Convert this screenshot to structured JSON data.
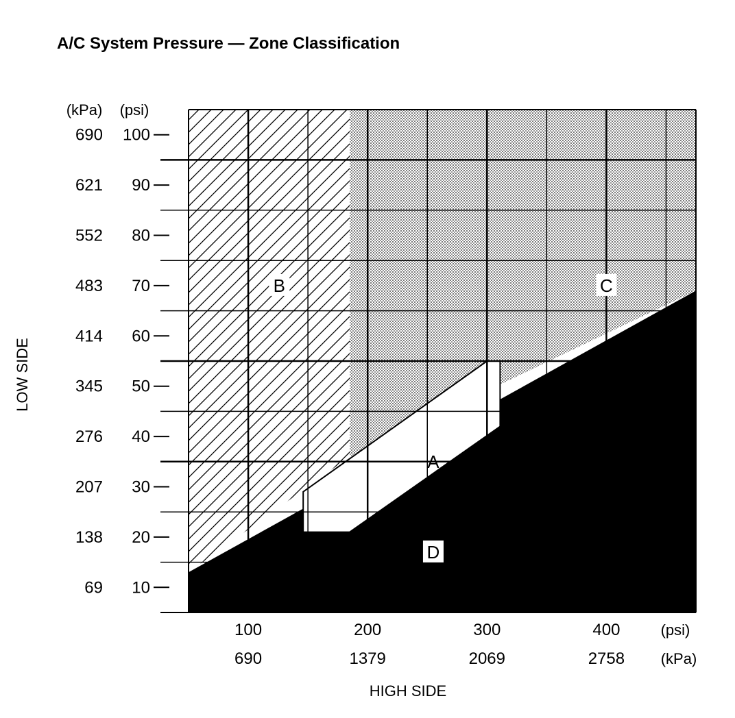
{
  "chart_data": {
    "type": "area",
    "title": "A/C System Pressure — Zone Classification",
    "xlabel": "HIGH SIDE",
    "ylabel": "LOW SIDE",
    "x_axis": {
      "unit_psi": "(psi)",
      "unit_kpa": "(kPa)",
      "range_psi": [
        50,
        475
      ],
      "ticks": [
        {
          "psi": 100,
          "psi_label": "100",
          "kpa_label": "690"
        },
        {
          "psi": 200,
          "psi_label": "200",
          "kpa_label": "1379"
        },
        {
          "psi": 300,
          "psi_label": "300",
          "kpa_label": "2069"
        },
        {
          "psi": 400,
          "psi_label": "400",
          "kpa_label": "2758"
        }
      ]
    },
    "y_axis": {
      "unit_kpa": "(kPa)",
      "unit_psi": "(psi)",
      "range_psi": [
        5,
        105
      ],
      "ticks": [
        {
          "psi": 10,
          "psi_label": "10",
          "kpa_label": "69"
        },
        {
          "psi": 20,
          "psi_label": "20",
          "kpa_label": "138"
        },
        {
          "psi": 30,
          "psi_label": "30",
          "kpa_label": "207"
        },
        {
          "psi": 40,
          "psi_label": "40",
          "kpa_label": "276"
        },
        {
          "psi": 50,
          "psi_label": "50",
          "kpa_label": "345"
        },
        {
          "psi": 60,
          "psi_label": "60",
          "kpa_label": "414"
        },
        {
          "psi": 70,
          "psi_label": "70",
          "kpa_label": "483"
        },
        {
          "psi": 80,
          "psi_label": "80",
          "kpa_label": "552"
        },
        {
          "psi": 90,
          "psi_label": "90",
          "kpa_label": "621"
        },
        {
          "psi": 100,
          "psi_label": "100",
          "kpa_label": "690"
        }
      ]
    },
    "grid": true,
    "zones": [
      {
        "label": "A",
        "fill": "white",
        "label_at": [
          255,
          35
        ],
        "polygon": [
          [
            146,
            29
          ],
          [
            300,
            55
          ],
          [
            311,
            55
          ],
          [
            311,
            42
          ],
          [
            185,
            21
          ],
          [
            146,
            21
          ]
        ]
      },
      {
        "label": "B",
        "fill": "hatched",
        "label_at": [
          126,
          70
        ],
        "polygon": [
          [
            50,
            105
          ],
          [
            185,
            105
          ],
          [
            185,
            36
          ],
          [
            50,
            13
          ]
        ]
      },
      {
        "label": "C",
        "fill": "dotted",
        "label_at": [
          400,
          70
        ],
        "polygon": [
          [
            185,
            105
          ],
          [
            475,
            105
          ],
          [
            475,
            69
          ],
          [
            185,
            36
          ]
        ]
      },
      {
        "label": "D",
        "fill": "black",
        "label_at": [
          255,
          17
        ],
        "polygon": [
          [
            50,
            13
          ],
          [
            475,
            69
          ],
          [
            475,
            5
          ],
          [
            50,
            5
          ]
        ]
      }
    ]
  },
  "colors": {
    "ink": "#000000",
    "background": "#ffffff",
    "dots": "#b5b5b5"
  }
}
